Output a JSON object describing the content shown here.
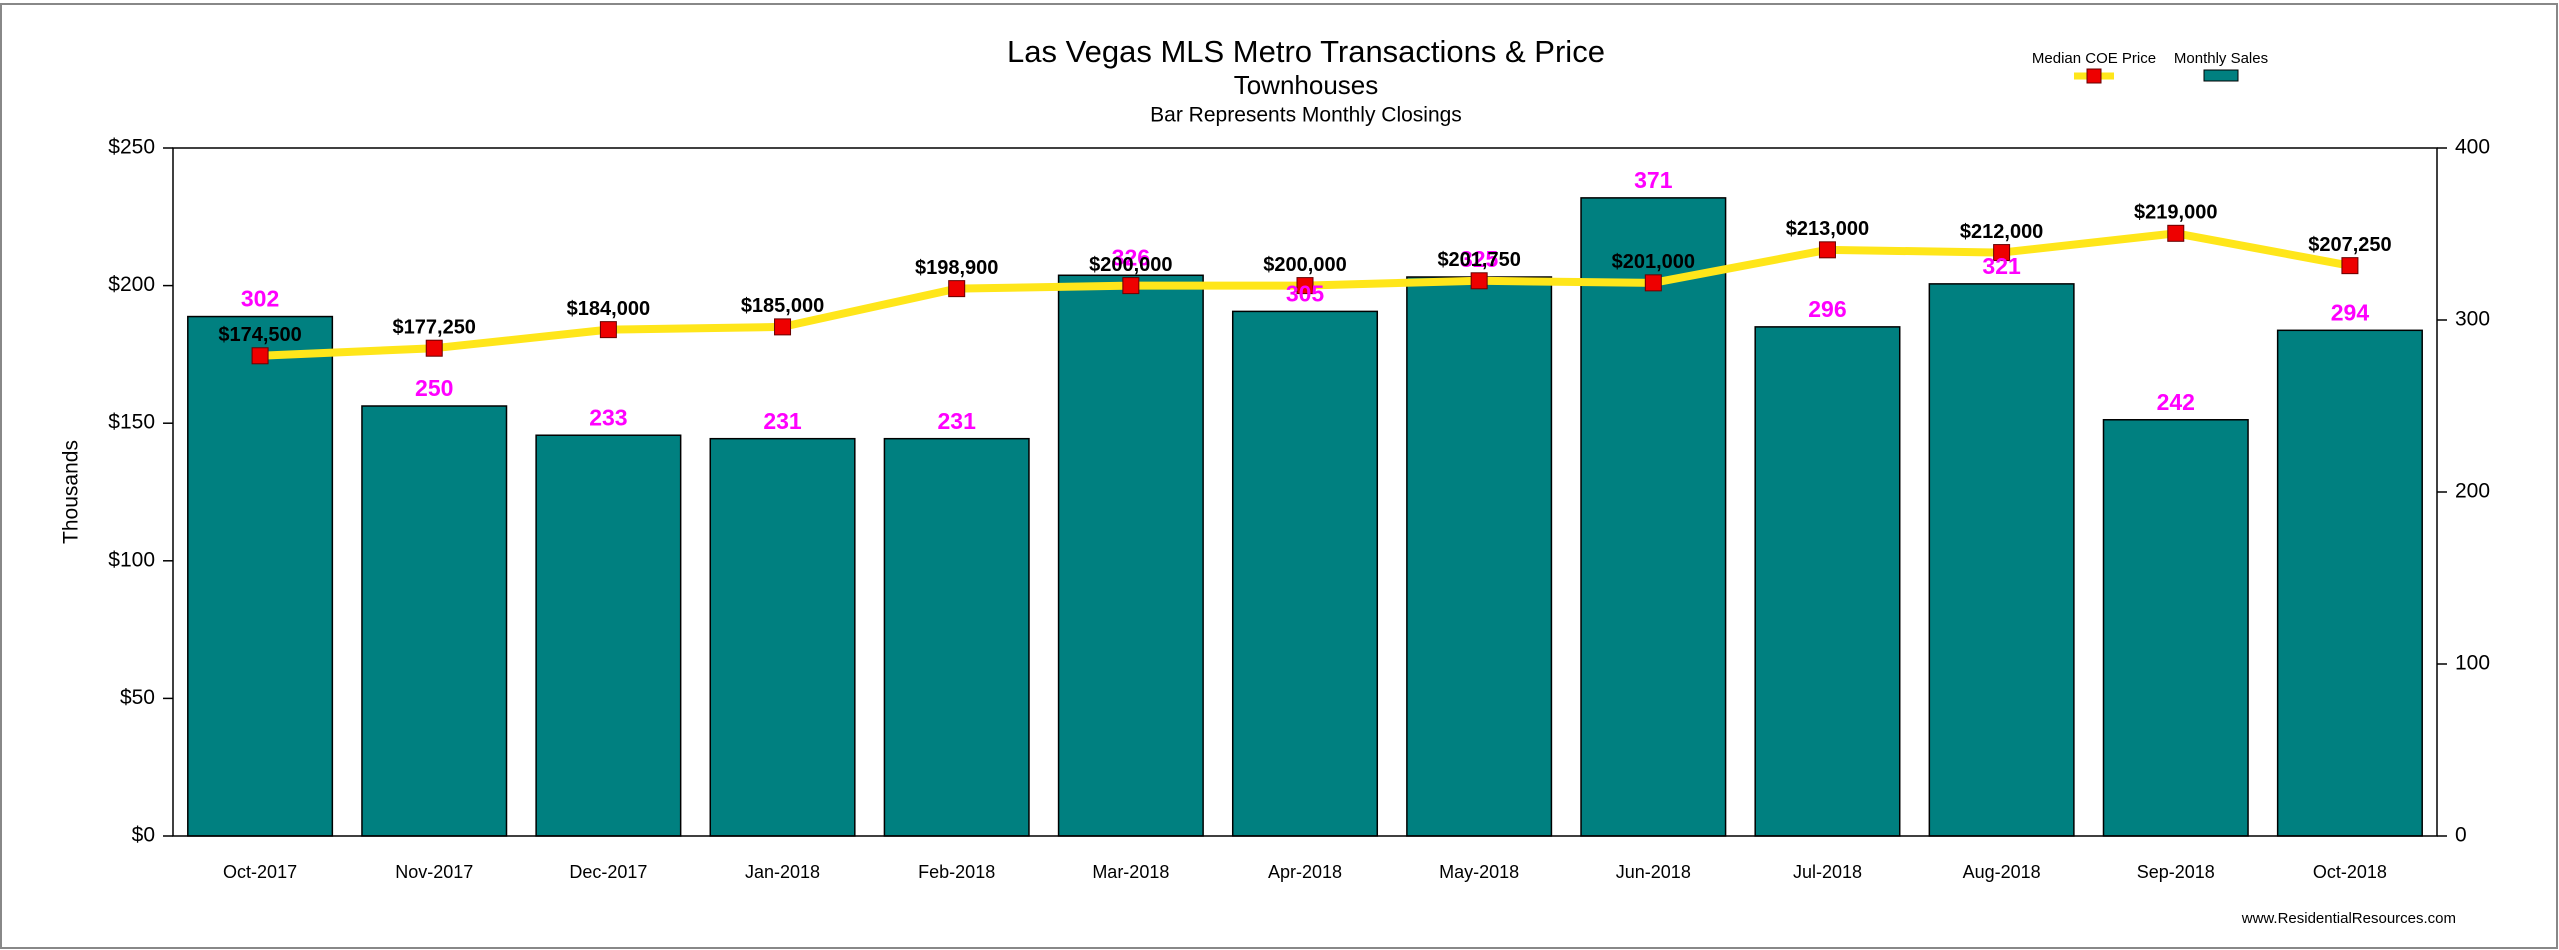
{
  "chart_data": {
    "type": "bar",
    "title": "Las Vegas MLS Metro Transactions & Price",
    "subtitle": "Townhouses",
    "note": "Bar Represents Monthly Closings",
    "ylabel": "Thousands",
    "footer": "www.ResidentialResources.com",
    "categories": [
      "Oct-2017",
      "Nov-2017",
      "Dec-2017",
      "Jan-2018",
      "Feb-2018",
      "Mar-2018",
      "Apr-2018",
      "May-2018",
      "Jun-2018",
      "Jul-2018",
      "Aug-2018",
      "Sep-2018",
      "Oct-2018"
    ],
    "series": [
      {
        "name": "Median COE Price",
        "type": "line",
        "axis": "y",
        "color": "#ffe61a",
        "marker_color": "#ee0000",
        "values": [
          174.5,
          177.25,
          184,
          185,
          198.9,
          200,
          200,
          201.75,
          201,
          213,
          212,
          219,
          207.25
        ],
        "value_labels": [
          "$174,500",
          "$177,250",
          "$184,000",
          "$185,000",
          "$198,900",
          "$200,000",
          "$200,000",
          "$201,750",
          "$201,000",
          "$213,000",
          "$212,000",
          "$219,000",
          "$207,250"
        ]
      },
      {
        "name": "Monthly Sales",
        "type": "bar",
        "axis": "y2",
        "color": "#008080",
        "label_color": "#ff00ff",
        "values": [
          302,
          250,
          233,
          231,
          231,
          326,
          305,
          325,
          371,
          296,
          321,
          242,
          294
        ]
      }
    ],
    "ylim": [
      0,
      250
    ],
    "yticks": [
      {
        "value": 0,
        "label": "$0"
      },
      {
        "value": 50,
        "label": "$50"
      },
      {
        "value": 100,
        "label": "$100"
      },
      {
        "value": 150,
        "label": "$150"
      },
      {
        "value": 200,
        "label": "$200"
      },
      {
        "value": 250,
        "label": "$250"
      }
    ],
    "y2lim": [
      0,
      400
    ],
    "y2ticks": [
      0,
      100,
      200,
      300,
      400
    ],
    "grid": false,
    "legend": "top-right"
  }
}
